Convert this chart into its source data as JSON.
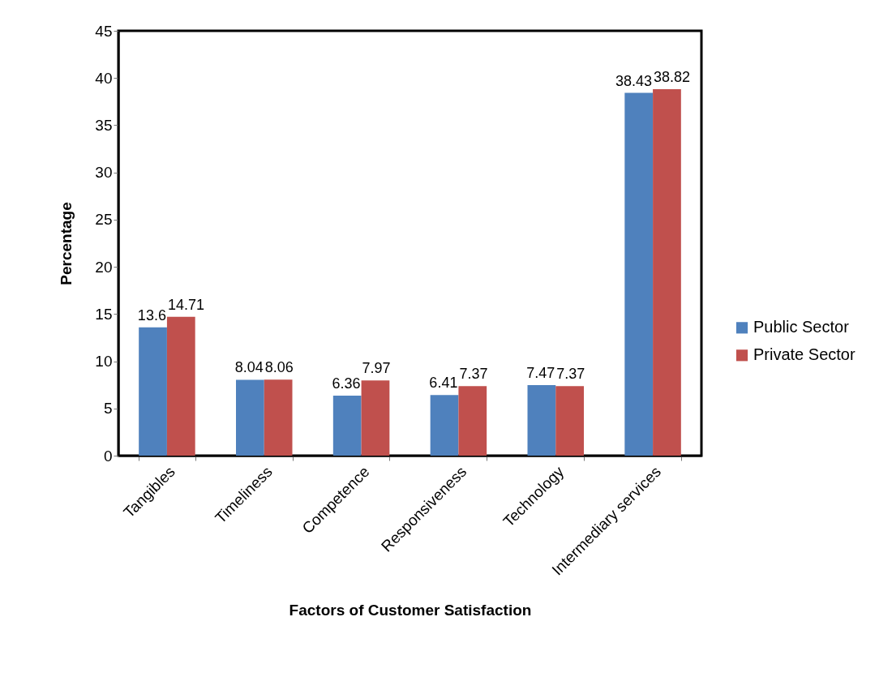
{
  "chart_data": {
    "type": "bar",
    "xlabel": "Factors of Customer Satisfaction",
    "ylabel": "Percentage",
    "categories": [
      "Tangibles",
      "Timeliness",
      "Competence",
      "Responsiveness",
      "Technology",
      "Intermediary services"
    ],
    "series": [
      {
        "name": "Public Sector",
        "color": "#4f81bd",
        "values": [
          13.6,
          8.04,
          6.36,
          6.41,
          7.47,
          38.43
        ]
      },
      {
        "name": "Private Sector",
        "color": "#c0504d",
        "values": [
          14.71,
          8.06,
          7.97,
          7.37,
          7.37,
          38.82
        ]
      }
    ],
    "ylim": [
      0,
      45
    ],
    "yticks": [
      0,
      5,
      10,
      15,
      20,
      25,
      30,
      35,
      40,
      45
    ],
    "grid": false,
    "legend": "right",
    "data_labels": true
  }
}
